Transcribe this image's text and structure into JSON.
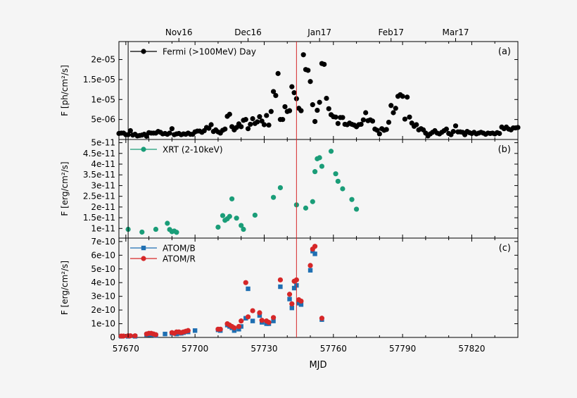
{
  "xlabel": "MJD",
  "top_axis_labels": [
    "Nov16",
    "Dec16",
    "Jan17",
    "Feb17",
    "Mar17"
  ],
  "top_axis_mjd": [
    57693,
    57723,
    57754,
    57785,
    57813
  ],
  "x_ticks": [
    57670,
    57700,
    57730,
    57760,
    57790,
    57820
  ],
  "xlim": [
    57667,
    57840
  ],
  "vline_mjd": [
    57671,
    57744
  ],
  "colors": {
    "fermi": "#000000",
    "xrt": "#1a9d78",
    "atom_b": "#1f6fb2",
    "atom_r": "#d62728",
    "vline_black": "#000000",
    "vline_red": "#d62728"
  },
  "chart_data": [
    {
      "type": "scatter",
      "panel": "(a)",
      "ylabel": "F [ph/cm²/s]",
      "ylim": [
        0,
        2.45e-05
      ],
      "y_ticks": [
        5e-06,
        1e-05,
        1.5e-05,
        2e-05
      ],
      "y_tick_labels": [
        "5e-06",
        "1e-05",
        "1.5e-05",
        "2e-05"
      ],
      "legend": "top-left",
      "series": [
        {
          "name": "Fermi (>100MeV) Day",
          "marker": "circle",
          "color": "#000000",
          "x": [
            57667,
            57668,
            57669,
            57670,
            57671,
            57672,
            57673,
            57674,
            57675,
            57676,
            57677,
            57678,
            57679,
            57680,
            57681,
            57682,
            57683,
            57684,
            57685,
            57686,
            57687,
            57688,
            57689,
            57690,
            57691,
            57692,
            57693,
            57694,
            57695,
            57696,
            57697,
            57698,
            57699,
            57700,
            57701,
            57702,
            57703,
            57704,
            57705,
            57706,
            57707,
            57708,
            57709,
            57710,
            57711,
            57712,
            57713,
            57714,
            57715,
            57716,
            57717,
            57718,
            57719,
            57720,
            57721,
            57722,
            57723,
            57724,
            57725,
            57726,
            57727,
            57728,
            57729,
            57730,
            57731,
            57732,
            57733,
            57734,
            57735,
            57736,
            57737,
            57738,
            57739,
            57740,
            57741,
            57742,
            57743,
            57744,
            57745,
            57746,
            57747,
            57748,
            57749,
            57750,
            57751,
            57752,
            57753,
            57754,
            57755,
            57756,
            57757,
            57758,
            57759,
            57760,
            57761,
            57762,
            57763,
            57764,
            57765,
            57766,
            57767,
            57768,
            57769,
            57770,
            57771,
            57772,
            57773,
            57774,
            57775,
            57776,
            57777,
            57778,
            57779,
            57780,
            57781,
            57782,
            57783,
            57784,
            57785,
            57786,
            57787,
            57788,
            57789,
            57790,
            57791,
            57792,
            57793,
            57794,
            57795,
            57796,
            57797,
            57798,
            57799,
            57800,
            57801,
            57802,
            57803,
            57804,
            57805,
            57806,
            57807,
            57808,
            57809,
            57810,
            57811,
            57812,
            57813,
            57814,
            57815,
            57816,
            57817,
            57818,
            57819,
            57820,
            57821,
            57822,
            57823,
            57824,
            57825,
            57826,
            57827,
            57828,
            57829,
            57830,
            57831,
            57832,
            57833,
            57834,
            57835,
            57836,
            57837,
            57838,
            57839,
            57840
          ],
          "y": [
            1.5e-06,
            1.6e-06,
            1.6e-06,
            1.2e-06,
            1.2e-06,
            2.2e-06,
            1.1e-06,
            1.3e-06,
            9e-07,
            1e-06,
            1.1e-06,
            1.3e-06,
            8e-07,
            1.7e-06,
            1.6e-06,
            1.6e-06,
            1.6e-06,
            2e-06,
            1.8e-06,
            1.4e-06,
            1.5e-06,
            1.3e-06,
            1.6e-06,
            2.7e-06,
            1.2e-06,
            1.4e-06,
            1.5e-06,
            1.2e-06,
            1.4e-06,
            1.3e-06,
            1.6e-06,
            1.3e-06,
            1.3e-06,
            1.9e-06,
            2.1e-06,
            2.1e-06,
            1.8e-06,
            2.2e-06,
            3e-06,
            2.8e-06,
            3.7e-06,
            2e-06,
            2.4e-06,
            1.9e-06,
            1.6e-06,
            2.3e-06,
            2.6e-06,
            5.8e-06,
            6.3e-06,
            3.2e-06,
            2.4e-06,
            3e-06,
            3.9e-06,
            3.2e-06,
            4.8e-06,
            5e-06,
            2.7e-06,
            3.8e-06,
            5.2e-06,
            4e-06,
            4.4e-06,
            5.7e-06,
            4.6e-06,
            3.7e-06,
            6e-06,
            3.6e-06,
            7e-06,
            1.2e-05,
            1.1e-05,
            1.65e-05,
            5e-06,
            5e-06,
            8.2e-06,
            7e-06,
            7.2e-06,
            1.32e-05,
            1.17e-05,
            1.02e-05,
            7.8e-06,
            7.2e-06,
            2.12e-05,
            1.75e-05,
            1.73e-05,
            1.45e-05,
            8.7e-06,
            4.5e-06,
            7.3e-06,
            9.3e-06,
            1.9e-05,
            1.88e-05,
            1.03e-05,
            7.7e-06,
            6.2e-06,
            5.7e-06,
            5.6e-06,
            4e-06,
            5.5e-06,
            5.5e-06,
            3.8e-06,
            3.7e-06,
            4.1e-06,
            3.8e-06,
            3.6e-06,
            3.2e-06,
            3.7e-06,
            3.8e-06,
            4.9e-06,
            6.7e-06,
            4.7e-06,
            4.9e-06,
            4.6e-06,
            2.6e-06,
            2.3e-06,
            1.4e-06,
            2.7e-06,
            2.3e-06,
            2.5e-06,
            4.3e-06,
            8.5e-06,
            6.7e-06,
            7.8e-06,
            1.08e-05,
            1.12e-05,
            1.08e-05,
            5.1e-06,
            1.06e-05,
            5.6e-06,
            4.1e-06,
            3.3e-06,
            3.7e-06,
            2.4e-06,
            2.7e-06,
            2.4e-06,
            1.6e-06,
            9e-07,
            1.4e-06,
            1.8e-06,
            2.2e-06,
            1.6e-06,
            1.4e-06,
            1.8e-06,
            2.2e-06,
            2.6e-06,
            1.5e-06,
            1.2e-06,
            2e-06,
            3.4e-06,
            1.9e-06,
            1.9e-06,
            1.8e-06,
            1.2e-06,
            2e-06,
            1.7e-06,
            1.5e-06,
            1.8e-06,
            1.4e-06,
            1.6e-06,
            1.8e-06,
            1.6e-06,
            1.3e-06,
            1.6e-06,
            1.5e-06,
            1.6e-06,
            1.4e-06,
            1.7e-06,
            1.5e-06,
            3.1e-06,
            2.7e-06,
            3.1e-06,
            2.6e-06,
            2.4e-06,
            2.9e-06,
            2.9e-06,
            3e-06
          ]
        }
      ]
    },
    {
      "type": "scatter",
      "panel": "(b)",
      "ylabel": "F [erg/cm²/s]",
      "ylim": [
        5.5e-12,
        5.15e-11
      ],
      "y_ticks": [
        1e-11,
        1.5e-11,
        2e-11,
        2.5e-11,
        3e-11,
        3.5e-11,
        4e-11,
        4.5e-11,
        5e-11
      ],
      "y_tick_labels": [
        "1e-11",
        "1.5e-11",
        "2e-11",
        "2.5e-11",
        "3e-11",
        "3.5e-11",
        "4e-11",
        "4.5e-11",
        "5e-11"
      ],
      "legend": "top-left",
      "series": [
        {
          "name": "XRT (2-10keV)",
          "marker": "circle",
          "color": "#1a9d78",
          "x": [
            57671,
            57677,
            57683,
            57688,
            57689,
            57690,
            57691,
            57692,
            57710,
            57712,
            57713,
            57714,
            57715,
            57716,
            57718,
            57720,
            57721,
            57726,
            57734,
            57737,
            57744,
            57748,
            57751,
            57752,
            57753,
            57754,
            57755,
            57759,
            57761,
            57762,
            57764,
            57768,
            57770
          ],
          "y": [
            9.6e-12,
            8.3e-12,
            9.6e-12,
            1.24e-11,
            9.5e-12,
            8.5e-12,
            8.8e-12,
            8.2e-12,
            1.06e-11,
            1.6e-11,
            1.38e-11,
            1.45e-11,
            1.56e-11,
            2.38e-11,
            1.48e-11,
            1.14e-11,
            9.6e-12,
            1.62e-11,
            2.45e-11,
            2.9e-11,
            2.1e-11,
            1.95e-11,
            2.25e-11,
            3.65e-11,
            4.25e-11,
            4.3e-11,
            3.9e-11,
            4.6e-11,
            3.55e-11,
            3.2e-11,
            2.85e-11,
            2.35e-11,
            1.9e-11
          ]
        }
      ]
    },
    {
      "type": "scatter",
      "panel": "(c)",
      "ylabel": "F [erg/cm²/s]",
      "ylim": [
        0,
        7.25e-10
      ],
      "y_ticks": [
        0,
        1e-10,
        2e-10,
        3e-10,
        4e-10,
        5e-10,
        6e-10,
        7e-10
      ],
      "y_tick_labels": [
        "0",
        "1e-10",
        "2e-10",
        "3e-10",
        "4e-10",
        "5e-10",
        "6e-10",
        "7e-10"
      ],
      "legend": "top-left",
      "series": [
        {
          "name": "ATOM/B",
          "marker": "square",
          "color": "#1f6fb2",
          "x": [
            57668,
            57671,
            57674,
            57679,
            57680,
            57681,
            57683,
            57687,
            57690,
            57692,
            57693,
            57694,
            57695,
            57697,
            57700,
            57710,
            57711,
            57714,
            57715,
            57716,
            57717,
            57719,
            57720,
            57722,
            57723,
            57725,
            57728,
            57729,
            57731,
            57732,
            57734,
            57737,
            57741,
            57742,
            57743,
            57744,
            57745,
            57746,
            57750,
            57751,
            57752,
            57755
          ],
          "y": [
            8e-12,
            8e-12,
            8e-12,
            2e-11,
            2e-11,
            2e-11,
            1.5e-11,
            2.5e-11,
            3e-11,
            2.5e-11,
            3e-11,
            3e-11,
            3.5e-11,
            4e-11,
            5e-11,
            5.5e-11,
            5e-11,
            9e-11,
            8e-11,
            7e-11,
            5e-11,
            6e-11,
            8e-11,
            1.4e-10,
            3.55e-10,
            1.2e-10,
            1.6e-10,
            1.1e-10,
            1e-10,
            1e-10,
            1.2e-10,
            3.7e-10,
            2.8e-10,
            2.15e-10,
            3.6e-10,
            3.8e-10,
            2.5e-10,
            2.4e-10,
            4.9e-10,
            6.3e-10,
            6.1e-10,
            1.3e-10
          ]
        },
        {
          "name": "ATOM/R",
          "marker": "circle",
          "color": "#d62728",
          "x": [
            57668,
            57669,
            57671,
            57672,
            57674,
            57679,
            57680,
            57681,
            57682,
            57683,
            57690,
            57691,
            57692,
            57693,
            57694,
            57695,
            57696,
            57697,
            57710,
            57711,
            57714,
            57715,
            57716,
            57717,
            57719,
            57720,
            57722,
            57723,
            57725,
            57728,
            57729,
            57731,
            57732,
            57734,
            57737,
            57741,
            57742,
            57743,
            57744,
            57745,
            57746,
            57750,
            57751,
            57752,
            57755
          ],
          "y": [
            1e-11,
            1e-11,
            1.2e-11,
            1.2e-11,
            1.2e-11,
            2.5e-11,
            3e-11,
            3e-11,
            2.5e-11,
            2e-11,
            3.5e-11,
            3e-11,
            4e-11,
            4e-11,
            3.5e-11,
            4e-11,
            4.5e-11,
            5e-11,
            6e-11,
            6e-11,
            1e-10,
            9e-11,
            8e-11,
            7e-11,
            8e-11,
            1.2e-10,
            4e-10,
            1.5e-10,
            1.95e-10,
            1.8e-10,
            1.25e-10,
            1.2e-10,
            1.1e-10,
            1.45e-10,
            4.2e-10,
            3.15e-10,
            2.45e-10,
            4.1e-10,
            4.2e-10,
            2.75e-10,
            2.65e-10,
            5.25e-10,
            6.45e-10,
            6.65e-10,
            1.4e-10
          ]
        }
      ]
    }
  ]
}
